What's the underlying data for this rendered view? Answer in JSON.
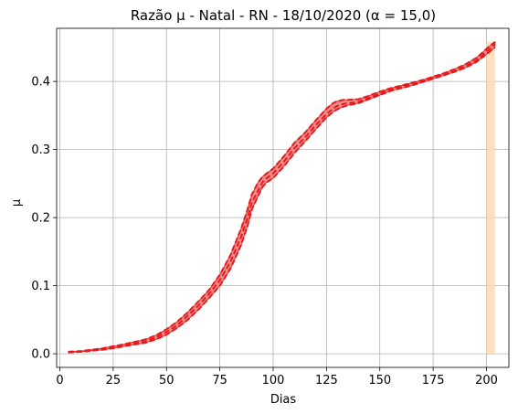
{
  "chart_data": {
    "type": "line",
    "title": "Razão μ - Natal - RN - 18/10/2020 (α = 15,0)",
    "xlabel": "Dias",
    "ylabel": "μ",
    "xlim": [
      -1.5,
      210.5
    ],
    "ylim": [
      -0.02,
      0.478
    ],
    "xticks": [
      0,
      25,
      50,
      75,
      100,
      125,
      150,
      175,
      200
    ],
    "yticks": [
      0.0,
      0.1,
      0.2,
      0.3,
      0.4
    ],
    "ytick_labels": [
      "0.0",
      "0.1",
      "0.2",
      "0.3",
      "0.4"
    ],
    "grid": true,
    "colors": {
      "line": "#e41a1c",
      "band": "#f08080",
      "forecast_band": "#ffdab0",
      "grid": "#b0b0b0"
    },
    "forecast_region": {
      "x_start": 200,
      "x_end": 204
    },
    "series": [
      {
        "style": "dashed",
        "x": [
          4,
          10,
          20,
          25,
          30,
          40,
          45,
          50,
          55,
          60,
          65,
          70,
          75,
          80,
          85,
          88,
          90,
          93,
          95,
          97,
          100,
          105,
          110,
          115,
          120,
          125,
          128,
          130,
          133,
          135,
          140,
          145,
          150,
          155,
          160,
          165,
          170,
          175,
          180,
          185,
          190,
          195,
          198,
          200,
          202,
          204
        ],
        "y": [
          0.002,
          0.003,
          0.006,
          0.009,
          0.012,
          0.018,
          0.024,
          0.032,
          0.042,
          0.056,
          0.071,
          0.088,
          0.108,
          0.135,
          0.172,
          0.2,
          0.222,
          0.24,
          0.252,
          0.258,
          0.265,
          0.282,
          0.302,
          0.318,
          0.336,
          0.352,
          0.36,
          0.364,
          0.367,
          0.368,
          0.37,
          0.376,
          0.382,
          0.388,
          0.392,
          0.396,
          0.4,
          0.405,
          0.41,
          0.415,
          0.422,
          0.43,
          0.438,
          0.444,
          0.449,
          0.455
        ]
      }
    ],
    "band": {
      "x": [
        4,
        10,
        20,
        25,
        30,
        40,
        45,
        50,
        55,
        60,
        65,
        70,
        75,
        80,
        85,
        88,
        90,
        93,
        95,
        97,
        100,
        105,
        110,
        115,
        120,
        125,
        128,
        130,
        133,
        135,
        140,
        145,
        150,
        155,
        160,
        165,
        170,
        175,
        180,
        185,
        190,
        195,
        198,
        200,
        202,
        204
      ],
      "lower": [
        0.002,
        0.003,
        0.006,
        0.008,
        0.011,
        0.016,
        0.021,
        0.028,
        0.038,
        0.05,
        0.065,
        0.082,
        0.1,
        0.125,
        0.16,
        0.188,
        0.212,
        0.232,
        0.245,
        0.252,
        0.258,
        0.275,
        0.295,
        0.312,
        0.33,
        0.347,
        0.355,
        0.359,
        0.363,
        0.365,
        0.368,
        0.374,
        0.38,
        0.386,
        0.39,
        0.394,
        0.399,
        0.404,
        0.409,
        0.414,
        0.42,
        0.428,
        0.435,
        0.44,
        0.445,
        0.45
      ],
      "upper": [
        0.003,
        0.004,
        0.008,
        0.011,
        0.014,
        0.021,
        0.027,
        0.036,
        0.047,
        0.061,
        0.077,
        0.094,
        0.116,
        0.145,
        0.184,
        0.212,
        0.234,
        0.252,
        0.26,
        0.265,
        0.272,
        0.29,
        0.31,
        0.325,
        0.343,
        0.36,
        0.368,
        0.371,
        0.373,
        0.373,
        0.374,
        0.379,
        0.385,
        0.39,
        0.394,
        0.398,
        0.402,
        0.407,
        0.412,
        0.418,
        0.425,
        0.434,
        0.442,
        0.448,
        0.453,
        0.458
      ]
    }
  }
}
